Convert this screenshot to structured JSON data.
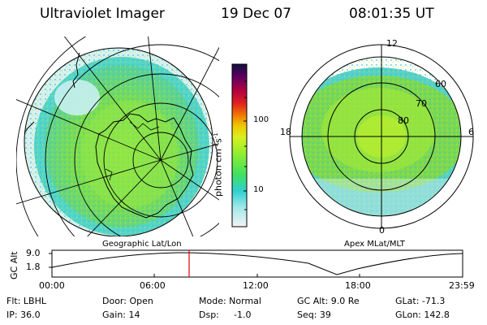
{
  "header": {
    "instrument": "Ultraviolet Imager",
    "date": "19 Dec 07",
    "time": "08:01:35 UT"
  },
  "geo_panel": {
    "caption": "Geographic Lat/Lon"
  },
  "polar_panel": {
    "caption": "Apex MLat/MLT",
    "mlt_labels": [
      "12",
      "18",
      "6",
      "0"
    ],
    "mlat_labels": [
      "60",
      "70",
      "80"
    ]
  },
  "colorbar": {
    "unit_label": "photon cm",
    "unit_exp1": "-2",
    "unit_mid": "s",
    "unit_exp2": "-1",
    "ticks": [
      "100",
      "10"
    ],
    "scale": "log",
    "colors": [
      "#f0f0f0",
      "#30d0d0",
      "#40e060",
      "#a0f020",
      "#f0d000",
      "#f08000",
      "#e02020",
      "#b00040",
      "#600060",
      "#101040"
    ]
  },
  "timeline": {
    "ylabel": "GC Alt",
    "yticks": [
      "9.0",
      "1.8"
    ],
    "xticks": [
      "00:00",
      "06:00",
      "12:00",
      "18:00",
      "23:59"
    ],
    "current_time_marker": "08:01:35"
  },
  "info": {
    "flt": "Flt: LBHL",
    "ip": "IP: 36.0",
    "door": "Door: Open",
    "gain": "Gain: 14",
    "mode": "Mode: Normal",
    "dsp_label": "Dsp:",
    "dsp_value": "-1.0",
    "gc_alt": "GC Alt: 9.0 Re",
    "seq": "Seq: 39",
    "glat": "GLat: -71.3",
    "glon": "GLon: 142.8"
  }
}
